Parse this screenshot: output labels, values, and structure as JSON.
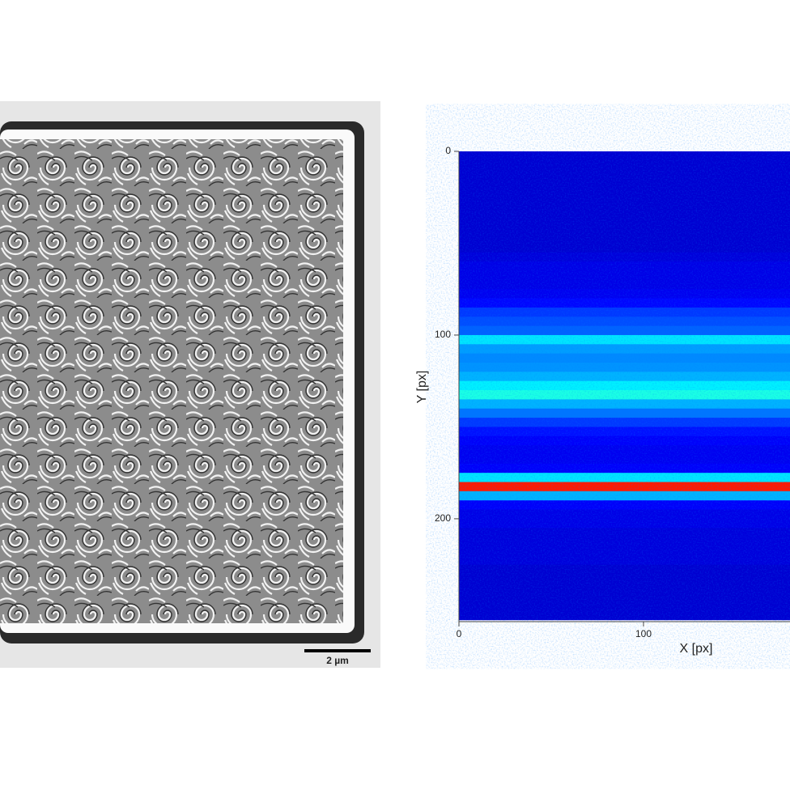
{
  "left_panel": {
    "scale_bar_label": "2 µm"
  },
  "chart_data": {
    "type": "heatmap",
    "xlabel": "X [px]",
    "ylabel": "Y [px]",
    "xlim": [
      0,
      256
    ],
    "ylim": [
      0,
      256
    ],
    "xticks": [
      0,
      100
    ],
    "yticks": [
      0,
      100,
      200
    ],
    "y_inverted": true,
    "y": [
      0,
      5,
      10,
      15,
      20,
      25,
      30,
      35,
      40,
      45,
      50,
      55,
      60,
      65,
      70,
      75,
      80,
      85,
      90,
      95,
      100,
      105,
      110,
      115,
      120,
      125,
      130,
      135,
      140,
      145,
      150,
      155,
      160,
      165,
      170,
      175,
      180,
      185,
      190,
      195,
      200,
      205,
      210,
      215,
      220,
      225,
      230,
      235,
      240,
      245,
      250
    ],
    "values": [
      0.08,
      0.08,
      0.08,
      0.08,
      0.08,
      0.08,
      0.08,
      0.08,
      0.08,
      0.08,
      0.08,
      0.09,
      0.1,
      0.1,
      0.1,
      0.11,
      0.13,
      0.18,
      0.2,
      0.22,
      0.35,
      0.28,
      0.26,
      0.27,
      0.3,
      0.36,
      0.4,
      0.3,
      0.24,
      0.18,
      0.14,
      0.12,
      0.11,
      0.11,
      0.12,
      0.35,
      0.85,
      0.3,
      0.12,
      0.1,
      0.1,
      0.09,
      0.09,
      0.09,
      0.09,
      0.08,
      0.08,
      0.08,
      0.08,
      0.08,
      0.08
    ]
  }
}
